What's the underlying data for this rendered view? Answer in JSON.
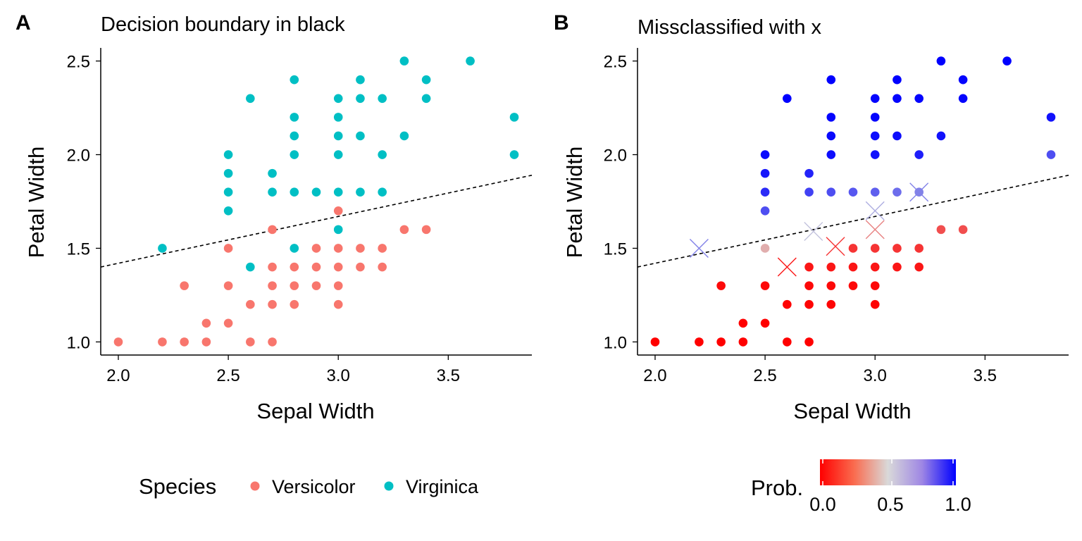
{
  "chart_data": [
    {
      "panel_label": "A",
      "type": "scatter",
      "title": "Decision boundary in black",
      "xlabel": "Sepal Width",
      "ylabel": "Petal Width",
      "xlim": [
        1.92,
        3.88
      ],
      "ylim": [
        0.93,
        2.57
      ],
      "xticks": [
        "2.0",
        "2.5",
        "3.0",
        "3.5"
      ],
      "yticks": [
        "1.0",
        "1.5",
        "2.0",
        "2.5"
      ],
      "grid": false,
      "boundary": {
        "style": "dashed",
        "color": "#000000",
        "points": [
          [
            1.92,
            1.4
          ],
          [
            3.88,
            1.89
          ]
        ]
      },
      "legend": {
        "title": "Species",
        "position": "bottom",
        "entries": [
          {
            "label": "Versicolor",
            "color": "#F8766D"
          },
          {
            "label": "Virginica",
            "color": "#00BFC4"
          }
        ]
      },
      "series": [
        {
          "name": "Versicolor",
          "color": "#F8766D",
          "points": [
            [
              2.0,
              1.0
            ],
            [
              2.2,
              1.0
            ],
            [
              2.3,
              1.0
            ],
            [
              2.4,
              1.0
            ],
            [
              2.6,
              1.0
            ],
            [
              2.7,
              1.0
            ],
            [
              2.4,
              1.1
            ],
            [
              2.5,
              1.1
            ],
            [
              2.3,
              1.3
            ],
            [
              2.5,
              1.3
            ],
            [
              2.6,
              1.2
            ],
            [
              2.7,
              1.2
            ],
            [
              2.8,
              1.2
            ],
            [
              3.0,
              1.2
            ],
            [
              2.7,
              1.3
            ],
            [
              2.8,
              1.3
            ],
            [
              2.9,
              1.3
            ],
            [
              3.0,
              1.3
            ],
            [
              2.7,
              1.4
            ],
            [
              2.8,
              1.4
            ],
            [
              2.9,
              1.4
            ],
            [
              3.0,
              1.4
            ],
            [
              3.1,
              1.4
            ],
            [
              3.2,
              1.4
            ],
            [
              2.5,
              1.5
            ],
            [
              2.9,
              1.5
            ],
            [
              3.0,
              1.5
            ],
            [
              3.1,
              1.5
            ],
            [
              3.2,
              1.5
            ],
            [
              3.3,
              1.6
            ],
            [
              3.4,
              1.6
            ],
            [
              2.7,
              1.6
            ],
            [
              3.0,
              1.7
            ]
          ]
        },
        {
          "name": "Virginica",
          "color": "#00BFC4",
          "points": [
            [
              2.2,
              1.5
            ],
            [
              2.6,
              1.4
            ],
            [
              2.8,
              1.5
            ],
            [
              3.0,
              1.6
            ],
            [
              2.5,
              1.7
            ],
            [
              2.5,
              1.8
            ],
            [
              2.5,
              1.9
            ],
            [
              2.5,
              2.0
            ],
            [
              2.6,
              2.3
            ],
            [
              2.7,
              1.8
            ],
            [
              2.7,
              1.9
            ],
            [
              2.8,
              1.8
            ],
            [
              2.8,
              2.0
            ],
            [
              2.8,
              2.1
            ],
            [
              2.8,
              2.2
            ],
            [
              2.8,
              2.4
            ],
            [
              2.9,
              1.8
            ],
            [
              3.0,
              1.8
            ],
            [
              3.0,
              2.0
            ],
            [
              3.0,
              2.1
            ],
            [
              3.0,
              2.2
            ],
            [
              3.0,
              2.3
            ],
            [
              3.1,
              1.8
            ],
            [
              3.1,
              2.1
            ],
            [
              3.1,
              2.3
            ],
            [
              3.1,
              2.4
            ],
            [
              3.2,
              1.8
            ],
            [
              3.2,
              2.0
            ],
            [
              3.2,
              2.3
            ],
            [
              3.3,
              2.1
            ],
            [
              3.3,
              2.5
            ],
            [
              3.4,
              2.3
            ],
            [
              3.4,
              2.4
            ],
            [
              3.6,
              2.5
            ],
            [
              3.8,
              2.0
            ],
            [
              3.8,
              2.2
            ]
          ]
        }
      ]
    },
    {
      "panel_label": "B",
      "type": "scatter",
      "title": "Missclassified with x",
      "xlabel": "Sepal Width",
      "ylabel": "Petal Width",
      "xlim": [
        1.92,
        3.88
      ],
      "ylim": [
        0.93,
        2.57
      ],
      "xticks": [
        "2.0",
        "2.5",
        "3.0",
        "3.5"
      ],
      "yticks": [
        "1.0",
        "1.5",
        "2.0",
        "2.5"
      ],
      "grid": false,
      "boundary": {
        "style": "dashed",
        "color": "#000000",
        "points": [
          [
            1.92,
            1.4
          ],
          [
            3.88,
            1.89
          ]
        ]
      },
      "colorbar": {
        "title": "Prob.",
        "position": "bottom",
        "colors": [
          "#FF0000",
          "#D9D9D9",
          "#0000FF"
        ],
        "ticks": [
          "0.0",
          "0.5",
          "1.0"
        ]
      },
      "points": [
        {
          "x": 2.0,
          "y": 1.0,
          "prob": 0.0
        },
        {
          "x": 2.2,
          "y": 1.0,
          "prob": 0.0
        },
        {
          "x": 2.3,
          "y": 1.0,
          "prob": 0.0
        },
        {
          "x": 2.4,
          "y": 1.0,
          "prob": 0.0
        },
        {
          "x": 2.6,
          "y": 1.0,
          "prob": 0.0
        },
        {
          "x": 2.7,
          "y": 1.0,
          "prob": 0.0
        },
        {
          "x": 2.4,
          "y": 1.1,
          "prob": 0.0
        },
        {
          "x": 2.5,
          "y": 1.1,
          "prob": 0.0
        },
        {
          "x": 2.3,
          "y": 1.3,
          "prob": 0.02
        },
        {
          "x": 2.5,
          "y": 1.3,
          "prob": 0.02
        },
        {
          "x": 2.6,
          "y": 1.2,
          "prob": 0.01
        },
        {
          "x": 2.7,
          "y": 1.2,
          "prob": 0.01
        },
        {
          "x": 2.8,
          "y": 1.2,
          "prob": 0.01
        },
        {
          "x": 3.0,
          "y": 1.2,
          "prob": 0.01
        },
        {
          "x": 2.7,
          "y": 1.3,
          "prob": 0.02
        },
        {
          "x": 2.8,
          "y": 1.3,
          "prob": 0.02
        },
        {
          "x": 2.9,
          "y": 1.3,
          "prob": 0.02
        },
        {
          "x": 3.0,
          "y": 1.3,
          "prob": 0.02
        },
        {
          "x": 2.7,
          "y": 1.4,
          "prob": 0.05
        },
        {
          "x": 2.8,
          "y": 1.4,
          "prob": 0.05
        },
        {
          "x": 2.9,
          "y": 1.4,
          "prob": 0.05
        },
        {
          "x": 3.0,
          "y": 1.4,
          "prob": 0.05
        },
        {
          "x": 3.1,
          "y": 1.4,
          "prob": 0.05
        },
        {
          "x": 3.2,
          "y": 1.4,
          "prob": 0.05
        },
        {
          "x": 2.5,
          "y": 1.5,
          "prob": 0.4
        },
        {
          "x": 2.9,
          "y": 1.5,
          "prob": 0.12
        },
        {
          "x": 3.0,
          "y": 1.5,
          "prob": 0.12
        },
        {
          "x": 3.1,
          "y": 1.5,
          "prob": 0.12
        },
        {
          "x": 3.2,
          "y": 1.5,
          "prob": 0.12
        },
        {
          "x": 3.3,
          "y": 1.6,
          "prob": 0.18
        },
        {
          "x": 3.4,
          "y": 1.6,
          "prob": 0.18
        },
        {
          "x": 2.5,
          "y": 1.7,
          "prob": 0.82
        },
        {
          "x": 2.5,
          "y": 1.8,
          "prob": 0.9
        },
        {
          "x": 2.5,
          "y": 1.9,
          "prob": 0.95
        },
        {
          "x": 2.5,
          "y": 2.0,
          "prob": 0.98
        },
        {
          "x": 2.6,
          "y": 2.3,
          "prob": 1.0
        },
        {
          "x": 2.7,
          "y": 1.8,
          "prob": 0.85
        },
        {
          "x": 2.7,
          "y": 1.9,
          "prob": 0.92
        },
        {
          "x": 2.8,
          "y": 1.8,
          "prob": 0.82
        },
        {
          "x": 2.8,
          "y": 2.0,
          "prob": 0.97
        },
        {
          "x": 2.8,
          "y": 2.1,
          "prob": 0.98
        },
        {
          "x": 2.8,
          "y": 2.2,
          "prob": 0.99
        },
        {
          "x": 2.8,
          "y": 2.4,
          "prob": 1.0
        },
        {
          "x": 2.9,
          "y": 1.8,
          "prob": 0.8
        },
        {
          "x": 3.0,
          "y": 1.8,
          "prob": 0.78
        },
        {
          "x": 3.0,
          "y": 2.0,
          "prob": 0.96
        },
        {
          "x": 3.0,
          "y": 2.1,
          "prob": 0.97
        },
        {
          "x": 3.0,
          "y": 2.2,
          "prob": 0.99
        },
        {
          "x": 3.0,
          "y": 2.3,
          "prob": 0.99
        },
        {
          "x": 3.1,
          "y": 1.8,
          "prob": 0.75
        },
        {
          "x": 3.1,
          "y": 2.1,
          "prob": 0.97
        },
        {
          "x": 3.1,
          "y": 2.3,
          "prob": 0.99
        },
        {
          "x": 3.1,
          "y": 2.4,
          "prob": 1.0
        },
        {
          "x": 3.2,
          "y": 1.8,
          "prob": 0.7
        },
        {
          "x": 3.2,
          "y": 2.0,
          "prob": 0.93
        },
        {
          "x": 3.2,
          "y": 2.3,
          "prob": 0.99
        },
        {
          "x": 3.3,
          "y": 2.1,
          "prob": 0.96
        },
        {
          "x": 3.3,
          "y": 2.5,
          "prob": 1.0
        },
        {
          "x": 3.4,
          "y": 2.3,
          "prob": 0.99
        },
        {
          "x": 3.4,
          "y": 2.4,
          "prob": 0.99
        },
        {
          "x": 3.6,
          "y": 2.5,
          "prob": 1.0
        },
        {
          "x": 3.8,
          "y": 2.2,
          "prob": 0.96
        },
        {
          "x": 3.8,
          "y": 2.0,
          "prob": 0.82
        }
      ],
      "misclassified": [
        {
          "x": 2.2,
          "y": 1.5,
          "prob": 0.7
        },
        {
          "x": 2.6,
          "y": 1.4,
          "prob": 0.05
        },
        {
          "x": 2.72,
          "y": 1.59,
          "prob": 0.55
        },
        {
          "x": 2.82,
          "y": 1.51,
          "prob": 0.12
        },
        {
          "x": 3.0,
          "y": 1.6,
          "prob": 0.3
        },
        {
          "x": 3.0,
          "y": 1.7,
          "prob": 0.6
        },
        {
          "x": 3.2,
          "y": 1.8,
          "prob": 0.7
        }
      ]
    }
  ]
}
